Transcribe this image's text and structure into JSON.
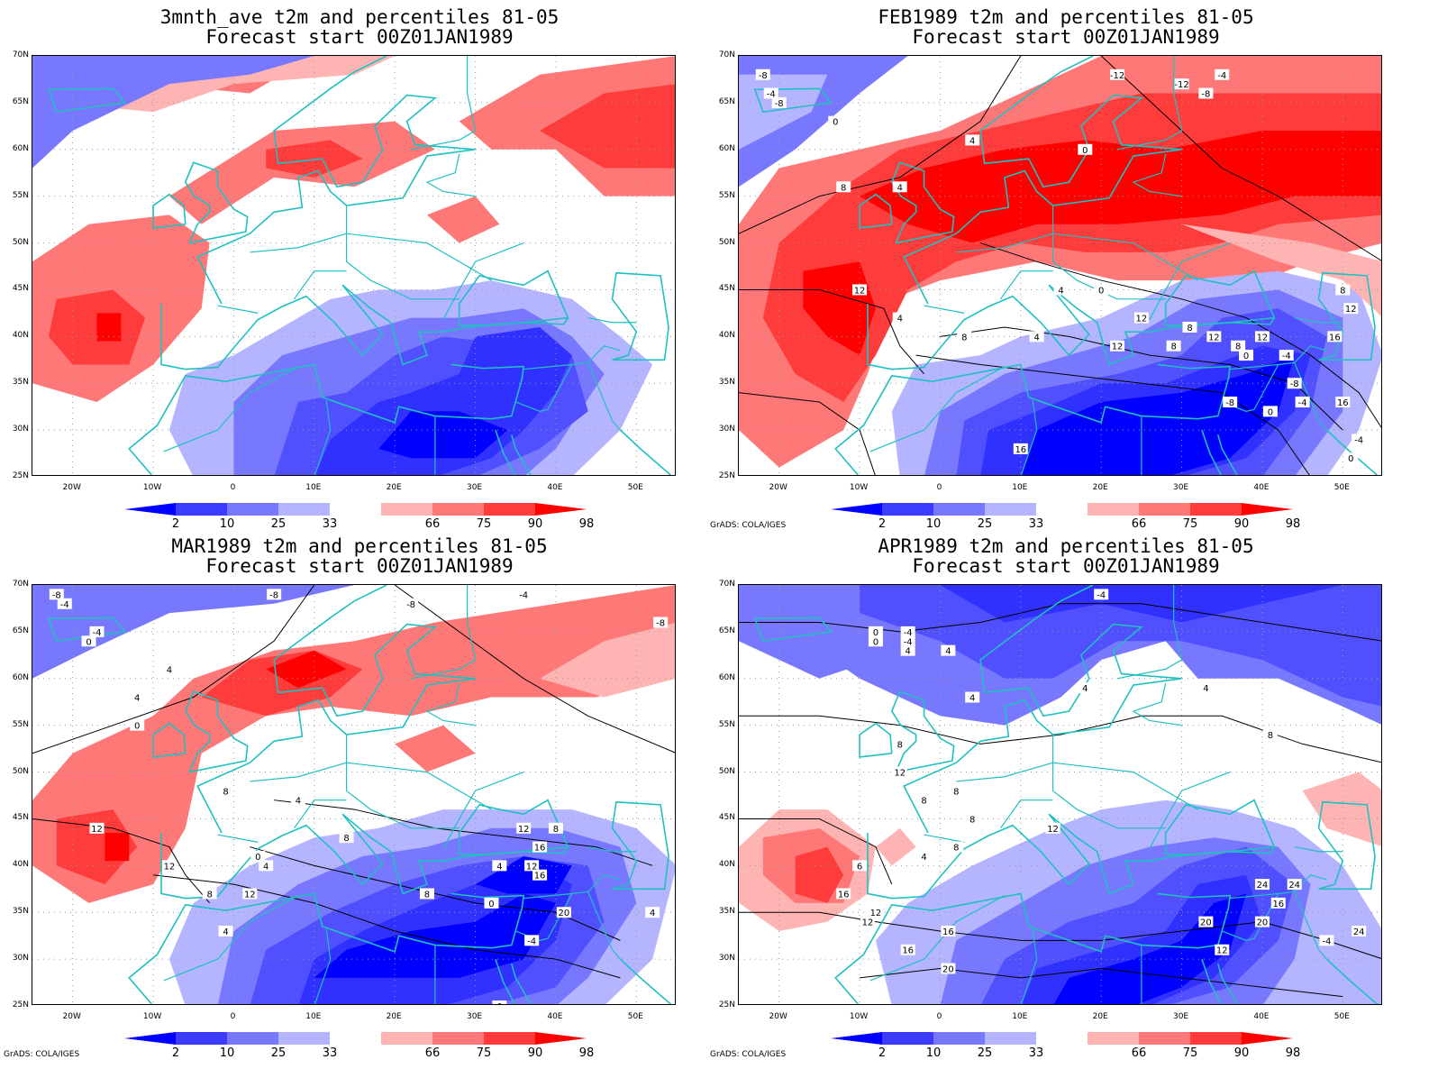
{
  "panels": [
    {
      "title1": "3mnth_ave t2m and percentiles 81-05",
      "title2": "Forecast start 00Z01JAN1989",
      "credit": ""
    },
    {
      "title1": "FEB1989 t2m and percentiles 81-05",
      "title2": "Forecast start 00Z01JAN1989",
      "credit": "GrADS: COLA/IGES"
    },
    {
      "title1": "MAR1989 t2m and percentiles 81-05",
      "title2": "Forecast start 00Z01JAN1989",
      "credit": "GrADS: COLA/IGES"
    },
    {
      "title1": "APR1989 t2m and percentiles 81-05",
      "title2": "Forecast start 00Z01JAN1989",
      "credit": "GrADS: COLA/IGES"
    }
  ],
  "map": {
    "lat_labels": [
      "70N",
      "65N",
      "60N",
      "55N",
      "50N",
      "45N",
      "40N",
      "35N",
      "30N",
      "25N"
    ],
    "lon_labels": [
      "20W",
      "10W",
      "0",
      "10E",
      "20E",
      "30E",
      "40E",
      "50E"
    ],
    "lon_range": [
      -25,
      55
    ],
    "lat_range": [
      25,
      70
    ]
  },
  "colorbar": {
    "labels": [
      "2",
      "10",
      "25",
      "33",
      "66",
      "75",
      "90",
      "98"
    ],
    "colors": [
      "#0000ff",
      "#3c3cff",
      "#7878ff",
      "#b4b4ff",
      "#ffffff",
      "#ffb4b4",
      "#ff7878",
      "#ff3c3c",
      "#ff0000"
    ]
  },
  "contour_labels": {
    "feb": [
      "-8",
      "-4",
      "-8",
      "0",
      "-12",
      "-12",
      "-8",
      "-4",
      "0",
      "4",
      "8",
      "4",
      "12",
      "4",
      "8",
      "4",
      "0",
      "12",
      "12",
      "8",
      "8",
      "12",
      "8",
      "12",
      "0",
      "-4",
      "-8",
      "-8",
      "0",
      "-4",
      "8",
      "12",
      "16",
      "16",
      "-4",
      "0",
      "4",
      "16"
    ],
    "mar": [
      "-8",
      "-4",
      "-4",
      "0",
      "4",
      "-8",
      "-8",
      "-4",
      "-8",
      "4",
      "0",
      "8",
      "4",
      "12",
      "8",
      "0",
      "4",
      "12",
      "8",
      "12",
      "4",
      "0",
      "4",
      "8",
      "12",
      "12",
      "16",
      "8",
      "16",
      "20",
      "-4",
      "0",
      "4"
    ],
    "apr": [
      "-4",
      "0",
      "4",
      "-4",
      "0",
      "8",
      "4",
      "4",
      "4",
      "4",
      "8",
      "-4",
      "12",
      "8",
      "8",
      "8",
      "12",
      "8",
      "4",
      "6",
      "16",
      "12",
      "12",
      "16",
      "16",
      "20",
      "20",
      "24",
      "24",
      "16",
      "20",
      "12",
      "24",
      "-4"
    ]
  }
}
